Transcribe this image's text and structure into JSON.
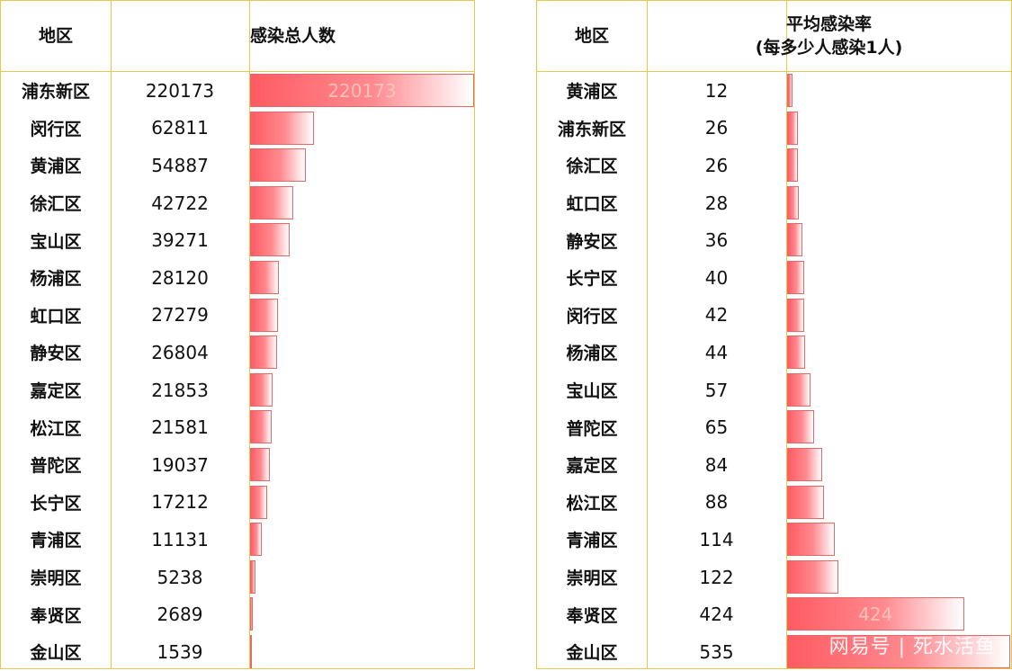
{
  "watermark": "网易号 | 死水活鱼",
  "colors": {
    "border": "#e8c84a",
    "bar_start": "#ff5b62",
    "bar_end": "#ffffff"
  },
  "left_table": {
    "header_region": "地区",
    "header_value": "感染总人数",
    "rows": [
      {
        "region": "浦东新区",
        "value": "220173"
      },
      {
        "region": "闵行区",
        "value": "62811"
      },
      {
        "region": "黄浦区",
        "value": "54887"
      },
      {
        "region": "徐汇区",
        "value": "42722"
      },
      {
        "region": "宝山区",
        "value": "39271"
      },
      {
        "region": "杨浦区",
        "value": "28120"
      },
      {
        "region": "虹口区",
        "value": "27279"
      },
      {
        "region": "静安区",
        "value": "26804"
      },
      {
        "region": "嘉定区",
        "value": "21853"
      },
      {
        "region": "松江区",
        "value": "21581"
      },
      {
        "region": "普陀区",
        "value": "19037"
      },
      {
        "region": "长宁区",
        "value": "17212"
      },
      {
        "region": "青浦区",
        "value": "11131"
      },
      {
        "region": "崇明区",
        "value": "5238"
      },
      {
        "region": "奉贤区",
        "value": "2689"
      },
      {
        "region": "金山区",
        "value": "1539"
      }
    ],
    "bar_label": "220173"
  },
  "right_table": {
    "header_region": "地区",
    "header_value_line1": "平均感染率",
    "header_value_line2": "(每多少人感染1人)",
    "rows": [
      {
        "region": "黄浦区",
        "value": "12"
      },
      {
        "region": "浦东新区",
        "value": "26"
      },
      {
        "region": "徐汇区",
        "value": "26"
      },
      {
        "region": "虹口区",
        "value": "28"
      },
      {
        "region": "静安区",
        "value": "36"
      },
      {
        "region": "长宁区",
        "value": "40"
      },
      {
        "region": "闵行区",
        "value": "42"
      },
      {
        "region": "杨浦区",
        "value": "44"
      },
      {
        "region": "宝山区",
        "value": "57"
      },
      {
        "region": "普陀区",
        "value": "65"
      },
      {
        "region": "嘉定区",
        "value": "84"
      },
      {
        "region": "松江区",
        "value": "88"
      },
      {
        "region": "青浦区",
        "value": "114"
      },
      {
        "region": "崇明区",
        "value": "122"
      },
      {
        "region": "奉贤区",
        "value": "424"
      },
      {
        "region": "金山区",
        "value": "535"
      }
    ],
    "bar_label": "424"
  },
  "chart_data": [
    {
      "type": "table",
      "columns": [
        "地区",
        "感染总人数"
      ],
      "categories": [
        "浦东新区",
        "闵行区",
        "黄浦区",
        "徐汇区",
        "宝山区",
        "杨浦区",
        "虹口区",
        "静安区",
        "嘉定区",
        "松江区",
        "普陀区",
        "长宁区",
        "青浦区",
        "崇明区",
        "奉贤区",
        "金山区"
      ],
      "values": [
        220173,
        62811,
        54887,
        42722,
        39271,
        28120,
        27279,
        26804,
        21853,
        21581,
        19037,
        17212,
        11131,
        5238,
        2689,
        1539
      ],
      "bar_max": 220173
    },
    {
      "type": "table",
      "columns": [
        "地区",
        "平均感染率(每多少人感染1人)"
      ],
      "categories": [
        "黄浦区",
        "浦东新区",
        "徐汇区",
        "虹口区",
        "静安区",
        "长宁区",
        "闵行区",
        "杨浦区",
        "宝山区",
        "普陀区",
        "嘉定区",
        "松江区",
        "青浦区",
        "崇明区",
        "奉贤区",
        "金山区"
      ],
      "values": [
        12,
        26,
        26,
        28,
        36,
        40,
        42,
        44,
        57,
        65,
        84,
        88,
        114,
        122,
        424,
        535
      ],
      "bar_max": 535
    }
  ]
}
